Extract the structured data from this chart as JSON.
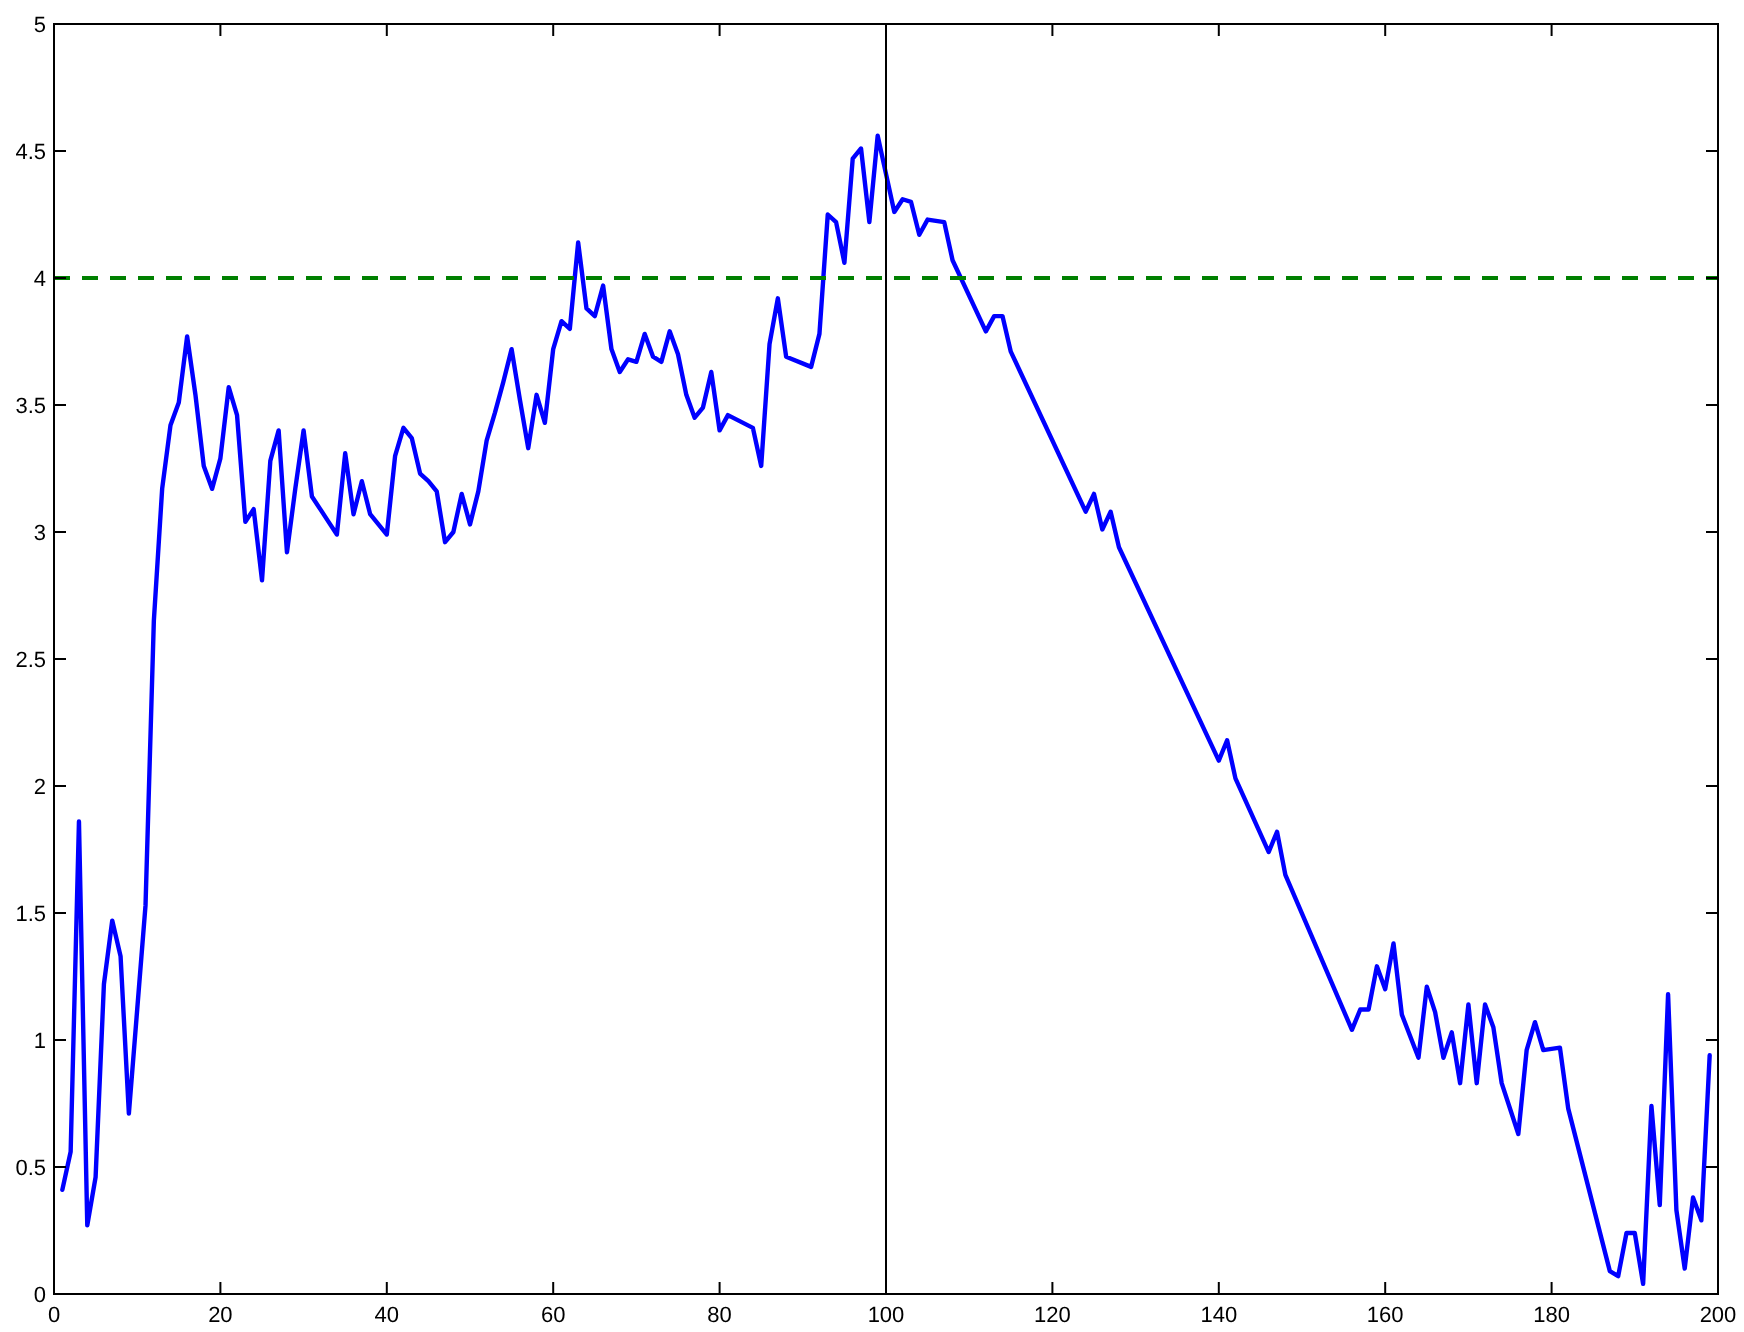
{
  "chart_data": {
    "type": "line",
    "xlim": [
      0,
      200
    ],
    "xticks": [
      0,
      20,
      40,
      60,
      80,
      100,
      120,
      140,
      160,
      180,
      200
    ],
    "ylim": [
      0,
      5
    ],
    "yticks": [
      0,
      0.5,
      1,
      1.5,
      2,
      2.5,
      3,
      3.5,
      4,
      4.5,
      5
    ],
    "marker": "none",
    "series": [
      {
        "color": "#0000ff",
        "line_style": "solid",
        "x": [
          1,
          2,
          3,
          4,
          5,
          6,
          7,
          8,
          9,
          10,
          11,
          12,
          13,
          14,
          15,
          16,
          17,
          18,
          19,
          20,
          21,
          22,
          23,
          24,
          25,
          26,
          27,
          28,
          29,
          30,
          31,
          32,
          33,
          34,
          35,
          36,
          37,
          38,
          39,
          40,
          41,
          42,
          43,
          44,
          45,
          46,
          47,
          48,
          49,
          50,
          51,
          52,
          53,
          54,
          55,
          56,
          57,
          58,
          59,
          60,
          61,
          62,
          63,
          64,
          65,
          66,
          67,
          68,
          69,
          70,
          71,
          72,
          73,
          74,
          75,
          76,
          77,
          78,
          79,
          80,
          81,
          84,
          85,
          86,
          87,
          88,
          91,
          92,
          93,
          94,
          95,
          96,
          97,
          98,
          99,
          100,
          101,
          102,
          103,
          104,
          105,
          107,
          108,
          112,
          113,
          114,
          115,
          124,
          125,
          126,
          127,
          128,
          140,
          141,
          142,
          146,
          147,
          148,
          156,
          157,
          158,
          159,
          160,
          161,
          162,
          164,
          165,
          166,
          167,
          168,
          169,
          170,
          171,
          172,
          173,
          174,
          176,
          177,
          178,
          179,
          181,
          182,
          187,
          188,
          189,
          190,
          191,
          192,
          193,
          194,
          195,
          196,
          197,
          198,
          199
        ],
        "values": [
          0.41,
          0.56,
          1.86,
          0.27,
          0.46,
          1.22,
          1.47,
          1.33,
          0.71,
          1.12,
          1.53,
          2.65,
          3.17,
          3.42,
          3.51,
          3.77,
          3.54,
          3.26,
          3.17,
          3.29,
          3.57,
          3.46,
          3.04,
          3.09,
          2.81,
          3.28,
          3.4,
          2.92,
          3.17,
          3.4,
          3.14,
          3.09,
          3.04,
          2.99,
          3.31,
          3.07,
          3.2,
          3.07,
          3.03,
          2.99,
          3.3,
          3.41,
          3.37,
          3.23,
          3.2,
          3.16,
          2.96,
          3,
          3.15,
          3.03,
          3.16,
          3.36,
          3.47,
          3.59,
          3.72,
          3.52,
          3.33,
          3.54,
          3.43,
          3.72,
          3.83,
          3.8,
          4.14,
          3.88,
          3.85,
          3.97,
          3.72,
          3.63,
          3.68,
          3.67,
          3.78,
          3.69,
          3.67,
          3.79,
          3.7,
          3.54,
          3.45,
          3.49,
          3.63,
          3.4,
          3.46,
          3.41,
          3.26,
          3.74,
          3.92,
          3.69,
          3.65,
          3.78,
          4.25,
          4.22,
          4.06,
          4.47,
          4.51,
          4.22,
          4.56,
          4.41,
          4.26,
          4.31,
          4.3,
          4.17,
          4.23,
          4.22,
          4.07,
          3.79,
          3.85,
          3.85,
          3.71,
          3.08,
          3.15,
          3.01,
          3.08,
          2.94,
          2.1,
          2.18,
          2.03,
          1.74,
          1.82,
          1.65,
          1.04,
          1.12,
          1.12,
          1.29,
          1.2,
          1.38,
          1.1,
          0.93,
          1.21,
          1.11,
          0.93,
          1.03,
          0.83,
          1.14,
          0.83,
          1.14,
          1.05,
          0.83,
          0.63,
          0.96,
          1.07,
          0.96,
          0.97,
          0.73,
          0.09,
          0.07,
          0.24,
          0.24,
          0.04,
          0.74,
          0.35,
          1.18,
          0.33,
          0.1,
          0.38,
          0.29,
          0.94
        ]
      }
    ],
    "ref_lines": [
      {
        "axis": "y",
        "value": 4,
        "color": "#008000",
        "line_style": "dashed"
      },
      {
        "axis": "x",
        "value": 100,
        "color": "#000000",
        "line_style": "solid"
      }
    ]
  }
}
